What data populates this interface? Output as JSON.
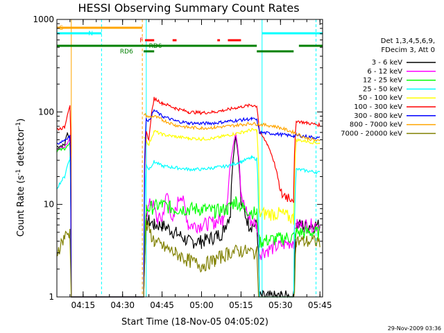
{
  "chart_data": {
    "type": "line",
    "title": "HESSI Observing Summary Count Rates",
    "xlabel": "Start Time (18-Nov-05 04:05:02)",
    "ylabel_main": "Count Rate (s",
    "ylabel_sup1": "-1",
    "ylabel_mid": " detector",
    "ylabel_sup2": "-1",
    "ylabel_end": ")",
    "footer": "29-Nov-2009 03:36",
    "y_scale": "log",
    "ylim": [
      1,
      1000
    ],
    "y_ticks": [
      {
        "value": 1,
        "label": "1"
      },
      {
        "value": 10,
        "label": "10"
      },
      {
        "value": 100,
        "label": "100"
      },
      {
        "value": 1000,
        "label": "1000"
      }
    ],
    "xlim": [
      "04:05:02",
      "05:46:00"
    ],
    "x_ticks": [
      {
        "value": "04:15",
        "label": "04:15"
      },
      {
        "value": "04:30",
        "label": "04:30"
      },
      {
        "value": "04:45",
        "label": "04:45"
      },
      {
        "value": "05:00",
        "label": "05:00"
      },
      {
        "value": "05:15",
        "label": "05:15"
      },
      {
        "value": "05:30",
        "label": "05:30"
      },
      {
        "value": "05:45",
        "label": "05:45"
      }
    ],
    "legend_header": [
      "Det 1,3,4,5,6,9,",
      "FDecim 3, Att 0"
    ],
    "legend_position": "right",
    "series": [
      {
        "name": "3 - 6 keV",
        "color": "#000000",
        "points": [
          [
            "04:05",
            42
          ],
          [
            "04:08",
            44
          ],
          [
            "04:09",
            60
          ],
          [
            "04:10",
            50
          ],
          [
            "04:10:30",
            0
          ],
          [
            "04:38",
            0
          ],
          [
            "04:39",
            7
          ],
          [
            "04:42",
            6
          ],
          [
            "04:45",
            6
          ],
          [
            "04:50",
            5
          ],
          [
            "04:55",
            4
          ],
          [
            "05:00",
            4
          ],
          [
            "05:05",
            4.5
          ],
          [
            "05:08",
            5
          ],
          [
            "05:11",
            8
          ],
          [
            "05:13",
            55
          ],
          [
            "05:15",
            10
          ],
          [
            "05:18",
            6
          ],
          [
            "05:21",
            6
          ],
          [
            "05:22",
            1
          ],
          [
            "05:35",
            1
          ],
          [
            "05:36",
            6
          ],
          [
            "05:45",
            6
          ]
        ]
      },
      {
        "name": "6 - 12 keV",
        "color": "#ff00ff",
        "points": [
          [
            "04:05",
            40
          ],
          [
            "04:08",
            42
          ],
          [
            "04:10",
            50
          ],
          [
            "04:10:30",
            0
          ],
          [
            "04:38",
            0
          ],
          [
            "04:39",
            8
          ],
          [
            "04:41",
            11
          ],
          [
            "04:43",
            7
          ],
          [
            "04:45",
            7
          ],
          [
            "04:47",
            13
          ],
          [
            "04:49",
            6
          ],
          [
            "04:52",
            13
          ],
          [
            "04:55",
            6
          ],
          [
            "05:00",
            6
          ],
          [
            "05:05",
            6.5
          ],
          [
            "05:08",
            7
          ],
          [
            "05:10",
            12
          ],
          [
            "05:13",
            60
          ],
          [
            "05:15",
            12
          ],
          [
            "05:18",
            7
          ],
          [
            "05:21",
            6
          ],
          [
            "05:22",
            3
          ],
          [
            "05:35",
            4
          ],
          [
            "05:36",
            6
          ],
          [
            "05:45",
            6
          ]
        ]
      },
      {
        "name": "12 - 25 keV",
        "color": "#00ff00",
        "points": [
          [
            "04:05",
            38
          ],
          [
            "04:08",
            40
          ],
          [
            "04:10",
            45
          ],
          [
            "04:10:30",
            0
          ],
          [
            "04:38",
            0
          ],
          [
            "04:39",
            9
          ],
          [
            "04:45",
            10
          ],
          [
            "04:50",
            9
          ],
          [
            "04:55",
            9
          ],
          [
            "05:00",
            9
          ],
          [
            "05:05",
            8.5
          ],
          [
            "05:10",
            9
          ],
          [
            "05:13",
            11
          ],
          [
            "05:16",
            9
          ],
          [
            "05:21",
            8
          ],
          [
            "05:22",
            4
          ],
          [
            "05:35",
            4.5
          ],
          [
            "05:36",
            5
          ],
          [
            "05:45",
            5
          ]
        ]
      },
      {
        "name": "25 - 50 keV",
        "color": "#00ffff",
        "points": [
          [
            "04:05",
            15
          ],
          [
            "04:08",
            20
          ],
          [
            "04:10",
            32
          ],
          [
            "04:10:30",
            0
          ],
          [
            "04:38",
            0
          ],
          [
            "04:39",
            27
          ],
          [
            "04:40",
            24
          ],
          [
            "04:42",
            29
          ],
          [
            "04:45",
            26
          ],
          [
            "04:50",
            25
          ],
          [
            "04:55",
            24
          ],
          [
            "05:00",
            24
          ],
          [
            "05:05",
            25
          ],
          [
            "05:10",
            26
          ],
          [
            "05:15",
            29
          ],
          [
            "05:19",
            32
          ],
          [
            "05:21",
            31
          ],
          [
            "05:22",
            0
          ],
          [
            "05:35",
            0
          ],
          [
            "05:36",
            24
          ],
          [
            "05:45",
            22
          ]
        ]
      },
      {
        "name": "50 - 100 keV",
        "color": "#ffff00",
        "points": [
          [
            "04:38",
            55
          ],
          [
            "04:40",
            44
          ],
          [
            "04:42",
            62
          ],
          [
            "04:45",
            57
          ],
          [
            "04:50",
            54
          ],
          [
            "04:55",
            52
          ],
          [
            "05:00",
            51
          ],
          [
            "05:05",
            52
          ],
          [
            "05:10",
            56
          ],
          [
            "05:15",
            60
          ],
          [
            "05:19",
            64
          ],
          [
            "05:21",
            63
          ],
          [
            "05:22",
            8
          ],
          [
            "05:30",
            8
          ],
          [
            "05:35",
            7
          ],
          [
            "05:36",
            50
          ],
          [
            "05:40",
            48
          ],
          [
            "05:45",
            46
          ]
        ]
      },
      {
        "name": "100 - 300 keV",
        "color": "#ff0000",
        "points": [
          [
            "04:05",
            65
          ],
          [
            "04:08",
            68
          ],
          [
            "04:10",
            120
          ],
          [
            "04:10:30",
            0
          ],
          [
            "04:38",
            0
          ],
          [
            "04:39",
            60
          ],
          [
            "04:40",
            50
          ],
          [
            "04:42",
            140
          ],
          [
            "04:45",
            125
          ],
          [
            "04:50",
            110
          ],
          [
            "04:55",
            100
          ],
          [
            "05:00",
            98
          ],
          [
            "05:05",
            100
          ],
          [
            "05:10",
            106
          ],
          [
            "05:15",
            114
          ],
          [
            "05:19",
            118
          ],
          [
            "05:21",
            116
          ],
          [
            "05:22",
            60
          ],
          [
            "05:25",
            45
          ],
          [
            "05:30",
            13
          ],
          [
            "05:35",
            12
          ],
          [
            "05:36",
            80
          ],
          [
            "05:40",
            76
          ],
          [
            "05:45",
            72
          ]
        ]
      },
      {
        "name": "300 - 800 keV",
        "color": "#0000ff",
        "points": [
          [
            "04:05",
            45
          ],
          [
            "04:08",
            50
          ],
          [
            "04:10",
            55
          ],
          [
            "04:10:30",
            0
          ],
          [
            "04:38",
            0
          ],
          [
            "04:39",
            85
          ],
          [
            "04:40",
            80
          ],
          [
            "04:42",
            104
          ],
          [
            "04:45",
            90
          ],
          [
            "04:50",
            80
          ],
          [
            "04:55",
            76
          ],
          [
            "05:00",
            75
          ],
          [
            "05:05",
            76
          ],
          [
            "05:10",
            79
          ],
          [
            "05:15",
            82
          ],
          [
            "05:19",
            84
          ],
          [
            "05:21",
            82
          ],
          [
            "05:22",
            60
          ],
          [
            "05:28",
            58
          ],
          [
            "05:35",
            55
          ],
          [
            "05:36",
            56
          ],
          [
            "05:45",
            52
          ]
        ]
      },
      {
        "name": "800 - 7000 keV",
        "color": "#ffa500",
        "points": [
          [
            "04:38",
            95
          ],
          [
            "04:40",
            88
          ],
          [
            "04:42",
            90
          ],
          [
            "04:45",
            82
          ],
          [
            "04:50",
            72
          ],
          [
            "04:55",
            68
          ],
          [
            "05:00",
            67
          ],
          [
            "05:05",
            68
          ],
          [
            "05:10",
            70
          ],
          [
            "05:15",
            73
          ],
          [
            "05:19",
            75
          ],
          [
            "05:21",
            74
          ],
          [
            "05:28",
            70
          ],
          [
            "05:35",
            60
          ],
          [
            "05:40",
            52
          ],
          [
            "05:45",
            48
          ]
        ]
      },
      {
        "name": "7000 - 20000 keV",
        "color": "#808000",
        "points": [
          [
            "04:05",
            3
          ],
          [
            "04:08",
            4.5
          ],
          [
            "04:10",
            5
          ],
          [
            "04:10:30",
            0
          ],
          [
            "04:38",
            0
          ],
          [
            "04:39",
            6
          ],
          [
            "04:42",
            4
          ],
          [
            "04:45",
            3.5
          ],
          [
            "04:50",
            3
          ],
          [
            "04:55",
            2.5
          ],
          [
            "05:00",
            2.2
          ],
          [
            "05:05",
            2.5
          ],
          [
            "05:10",
            3
          ],
          [
            "05:15",
            3.2
          ],
          [
            "05:21",
            3
          ],
          [
            "05:22",
            0
          ],
          [
            "05:35",
            0
          ],
          [
            "05:36",
            4
          ],
          [
            "05:45",
            4
          ]
        ]
      }
    ],
    "annotations": [
      {
        "label": "S",
        "color": "#ffa500"
      },
      {
        "label": "N",
        "color": "#00ffff"
      },
      {
        "label": "F",
        "color": "#ff0000"
      },
      {
        "label": "RD6",
        "color": "#008000"
      },
      {
        "label": "RD6",
        "color": "#008000"
      }
    ]
  }
}
